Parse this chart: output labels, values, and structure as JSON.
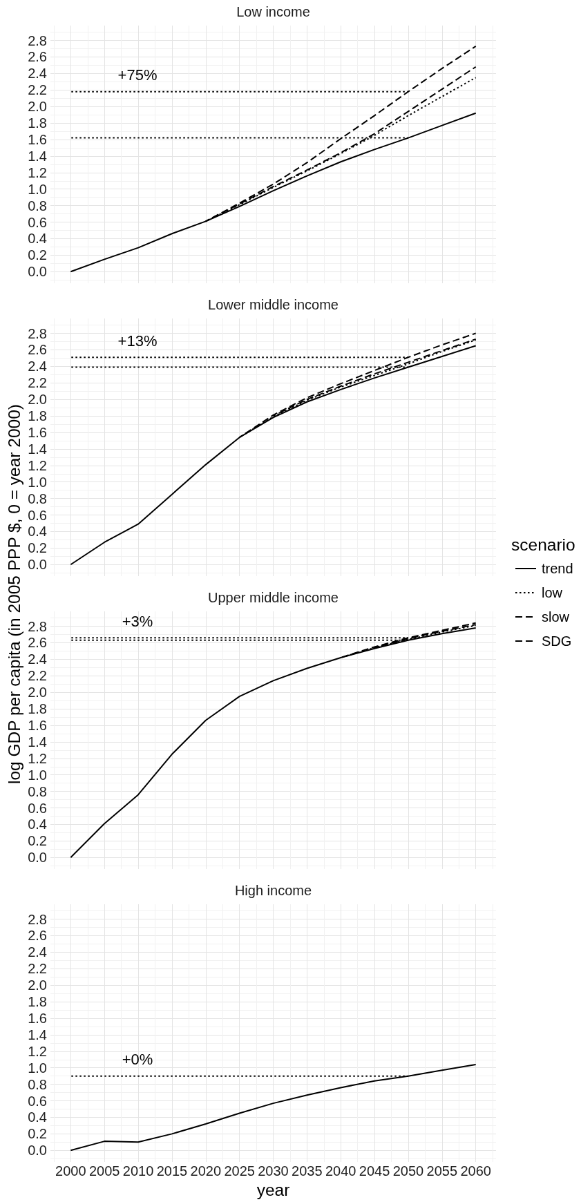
{
  "chart_data": [
    {
      "type": "line",
      "title": "Low income",
      "x": [
        2000,
        2005,
        2010,
        2015,
        2020,
        2025,
        2030,
        2035,
        2040,
        2045,
        2050,
        2055,
        2060
      ],
      "xlim": [
        1997,
        2063
      ],
      "xticks": [
        2000,
        2005,
        2010,
        2015,
        2020,
        2025,
        2030,
        2035,
        2040,
        2045,
        2050,
        2055,
        2060
      ],
      "ylim": [
        -0.14,
        2.98
      ],
      "yticks": [
        {
          "value": 0,
          "label": "0.0"
        },
        0.2,
        0.4,
        0.6,
        0.8,
        {
          "value": 1,
          "label": "1.0"
        },
        1.2,
        1.4,
        1.6,
        1.8,
        {
          "value": 2,
          "label": "2.0"
        },
        2.2,
        2.4,
        2.6,
        2.8
      ],
      "grid": true,
      "tick_labels": "y",
      "series": [
        {
          "color": "#000000",
          "line_style": "solid",
          "values": [
            0,
            0.15,
            0.29,
            0.46,
            0.61,
            0.79,
            0.98,
            1.16,
            1.33,
            1.48,
            1.62,
            1.77,
            1.92
          ]
        },
        {
          "color": "#000000",
          "line_style": "dotted",
          "values": [
            null,
            null,
            null,
            null,
            0.61,
            0.81,
            1.02,
            1.22,
            1.43,
            1.65,
            1.89,
            2.12,
            2.35
          ]
        },
        {
          "color": "#000000",
          "line_style": "dashed",
          "values": [
            null,
            null,
            null,
            null,
            0.61,
            0.82,
            1.03,
            1.23,
            1.44,
            1.67,
            1.94,
            2.21,
            2.48
          ]
        },
        {
          "color": "#000000",
          "line_style": "dashed",
          "values": [
            null,
            null,
            null,
            null,
            0.61,
            0.83,
            1.06,
            1.32,
            1.61,
            1.89,
            2.18,
            2.46,
            2.73
          ]
        },
        {
          "color": "#000000",
          "line_style": "dotted",
          "values": [
            2.18,
            2.18,
            2.18,
            2.18,
            2.18,
            2.18,
            2.18,
            2.18,
            2.18,
            2.18,
            2.18,
            null,
            null
          ]
        },
        {
          "color": "#000000",
          "line_style": "dotted",
          "values": [
            1.62,
            1.62,
            1.62,
            1.62,
            1.62,
            1.62,
            1.62,
            1.62,
            1.62,
            1.62,
            1.62,
            null,
            null
          ]
        }
      ],
      "annotations": [
        "+75%"
      ]
    },
    {
      "type": "line",
      "title": "Lower middle income",
      "x": [
        2000,
        2005,
        2010,
        2015,
        2020,
        2025,
        2030,
        2035,
        2040,
        2045,
        2050,
        2055,
        2060
      ],
      "xlim": [
        1997,
        2063
      ],
      "xticks": [
        2000,
        2005,
        2010,
        2015,
        2020,
        2025,
        2030,
        2035,
        2040,
        2045,
        2050,
        2055,
        2060
      ],
      "ylim": [
        -0.14,
        2.98
      ],
      "yticks": [
        {
          "value": 0,
          "label": "0.0"
        },
        0.2,
        0.4,
        0.6,
        0.8,
        {
          "value": 1,
          "label": "1.0"
        },
        1.2,
        1.4,
        1.6,
        1.8,
        {
          "value": 2,
          "label": "2.0"
        },
        2.2,
        2.4,
        2.6,
        2.8
      ],
      "grid": true,
      "tick_labels": "y",
      "ylabel": "log GDP per capita (in 2005 PPP $, 0 = year 2000)",
      "legend": "right",
      "legend_title": "scenario",
      "series": [
        {
          "name": "trend",
          "color": "#000000",
          "line_style": "solid",
          "values": [
            0,
            0.27,
            0.49,
            0.85,
            1.21,
            1.54,
            1.78,
            1.97,
            2.12,
            2.26,
            2.39,
            2.52,
            2.65
          ]
        },
        {
          "name": "low",
          "color": "#000000",
          "line_style": "dotted",
          "values": [
            null,
            null,
            null,
            null,
            null,
            1.54,
            1.79,
            1.99,
            2.15,
            2.29,
            2.43,
            2.58,
            2.72
          ]
        },
        {
          "name": "slow",
          "color": "#000000",
          "line_style": "dashed",
          "values": [
            null,
            null,
            null,
            null,
            null,
            null,
            1.8,
            2.0,
            2.16,
            2.31,
            2.45,
            2.59,
            2.73
          ]
        },
        {
          "name": "SDG",
          "color": "#000000",
          "line_style": "dashed",
          "values": [
            null,
            null,
            null,
            null,
            null,
            1.54,
            1.81,
            2.02,
            2.19,
            2.35,
            2.51,
            2.66,
            2.8
          ]
        },
        {
          "color": "#000000",
          "line_style": "dotted",
          "values": [
            2.51,
            2.51,
            2.51,
            2.51,
            2.51,
            2.51,
            2.51,
            2.51,
            2.51,
            2.51,
            2.51,
            null,
            null
          ]
        },
        {
          "color": "#000000",
          "line_style": "dotted",
          "values": [
            2.39,
            2.39,
            2.39,
            2.39,
            2.39,
            2.39,
            2.39,
            2.39,
            2.39,
            2.39,
            2.39,
            null,
            null
          ]
        }
      ],
      "annotations": [
        "+13%"
      ]
    },
    {
      "type": "line",
      "title": "Upper middle income",
      "x": [
        2000,
        2005,
        2010,
        2015,
        2020,
        2025,
        2030,
        2035,
        2040,
        2045,
        2050,
        2055,
        2060
      ],
      "xlim": [
        1997,
        2063
      ],
      "xticks": [
        2000,
        2005,
        2010,
        2015,
        2020,
        2025,
        2030,
        2035,
        2040,
        2045,
        2050,
        2055,
        2060
      ],
      "ylim": [
        -0.14,
        2.98
      ],
      "yticks": [
        {
          "value": 0,
          "label": "0.0"
        },
        0.2,
        0.4,
        0.6,
        0.8,
        {
          "value": 1,
          "label": "1.0"
        },
        1.2,
        1.4,
        1.6,
        1.8,
        {
          "value": 2,
          "label": "2.0"
        },
        2.2,
        2.4,
        2.6,
        2.8
      ],
      "grid": true,
      "tick_labels": "y",
      "series": [
        {
          "color": "#000000",
          "line_style": "solid",
          "values": [
            0,
            0.41,
            0.76,
            1.25,
            1.66,
            1.95,
            2.14,
            2.29,
            2.42,
            2.53,
            2.63,
            2.71,
            2.78
          ]
        },
        {
          "color": "#000000",
          "line_style": "dotted",
          "values": [
            null,
            null,
            null,
            null,
            null,
            null,
            null,
            null,
            2.42,
            2.54,
            2.64,
            2.73,
            2.81
          ]
        },
        {
          "color": "#000000",
          "line_style": "dashed",
          "values": [
            null,
            null,
            null,
            null,
            null,
            null,
            null,
            null,
            null,
            2.54,
            2.65,
            2.74,
            2.82
          ]
        },
        {
          "color": "#000000",
          "line_style": "dashed",
          "values": [
            null,
            null,
            null,
            null,
            null,
            null,
            null,
            null,
            2.42,
            2.55,
            2.66,
            2.75,
            2.84
          ]
        },
        {
          "color": "#000000",
          "line_style": "dotted",
          "values": [
            2.66,
            2.66,
            2.66,
            2.66,
            2.66,
            2.66,
            2.66,
            2.66,
            2.66,
            2.66,
            2.66,
            null,
            null
          ]
        },
        {
          "color": "#000000",
          "line_style": "dotted",
          "values": [
            2.63,
            2.63,
            2.63,
            2.63,
            2.63,
            2.63,
            2.63,
            2.63,
            2.63,
            2.63,
            2.63,
            null,
            null
          ]
        }
      ],
      "annotations": [
        "+3%"
      ]
    },
    {
      "type": "line",
      "title": "High income",
      "x": [
        2000,
        2005,
        2010,
        2015,
        2020,
        2025,
        2030,
        2035,
        2040,
        2045,
        2050,
        2055,
        2060
      ],
      "xlim": [
        1997,
        2063
      ],
      "xticks": [
        2000,
        2005,
        2010,
        2015,
        2020,
        2025,
        2030,
        2035,
        2040,
        2045,
        2050,
        2055,
        2060
      ],
      "ylim": [
        -0.14,
        2.98
      ],
      "yticks": [
        {
          "value": 0,
          "label": "0.0"
        },
        0.2,
        0.4,
        0.6,
        0.8,
        {
          "value": 1,
          "label": "1.0"
        },
        1.2,
        1.4,
        1.6,
        1.8,
        {
          "value": 2,
          "label": "2.0"
        },
        2.2,
        2.4,
        2.6,
        2.8
      ],
      "grid": true,
      "xlabel": "year",
      "series": [
        {
          "color": "#000000",
          "line_style": "solid",
          "values": [
            0,
            0.11,
            0.1,
            0.2,
            0.32,
            0.45,
            0.57,
            0.67,
            0.76,
            0.84,
            0.9,
            0.97,
            1.04
          ]
        },
        {
          "color": "#000000",
          "line_style": "dotted",
          "values": [
            0.9,
            0.9,
            0.9,
            0.9,
            0.9,
            0.9,
            0.9,
            0.9,
            0.9,
            0.9,
            0.9,
            null,
            null
          ]
        }
      ],
      "annotations": [
        "+0%"
      ]
    }
  ]
}
